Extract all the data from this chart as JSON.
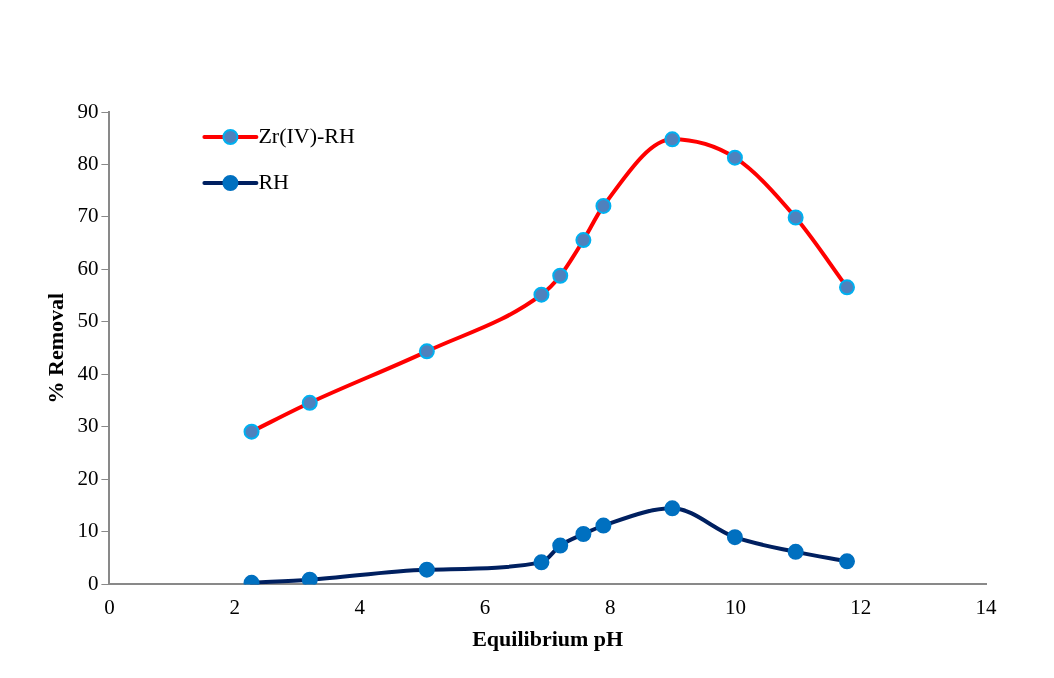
{
  "chart_data": {
    "type": "line",
    "xlabel": "Equilibrium pH",
    "ylabel": "% Removal",
    "xlim": [
      0,
      14
    ],
    "xticks": [
      0,
      2,
      4,
      6,
      8,
      10,
      12,
      14
    ],
    "ylim": [
      0,
      90
    ],
    "yticks": [
      0,
      10,
      20,
      30,
      40,
      50,
      60,
      70,
      80,
      90
    ],
    "grid": false,
    "legend": "top left",
    "marker": "circle",
    "line_style": "solid",
    "series": [
      {
        "name": "Zr(IV)-RH",
        "color": "#ff0000",
        "x": [
          2.27,
          3.2,
          5.07,
          6.9,
          7.2,
          7.57,
          7.89,
          8.99,
          9.99,
          10.96,
          11.78
        ],
        "values": [
          29.1,
          34.6,
          44.4,
          55.2,
          58.8,
          65.6,
          72.1,
          84.8,
          81.3,
          69.9,
          56.6
        ]
      },
      {
        "name": "RH",
        "color": "#002060",
        "x": [
          2.27,
          3.2,
          5.07,
          6.9,
          7.2,
          7.57,
          7.89,
          8.99,
          9.99,
          10.96,
          11.78
        ],
        "values": [
          0.3,
          0.9,
          2.8,
          4.2,
          7.4,
          9.6,
          11.2,
          14.5,
          9.0,
          6.2,
          4.4
        ]
      }
    ]
  }
}
